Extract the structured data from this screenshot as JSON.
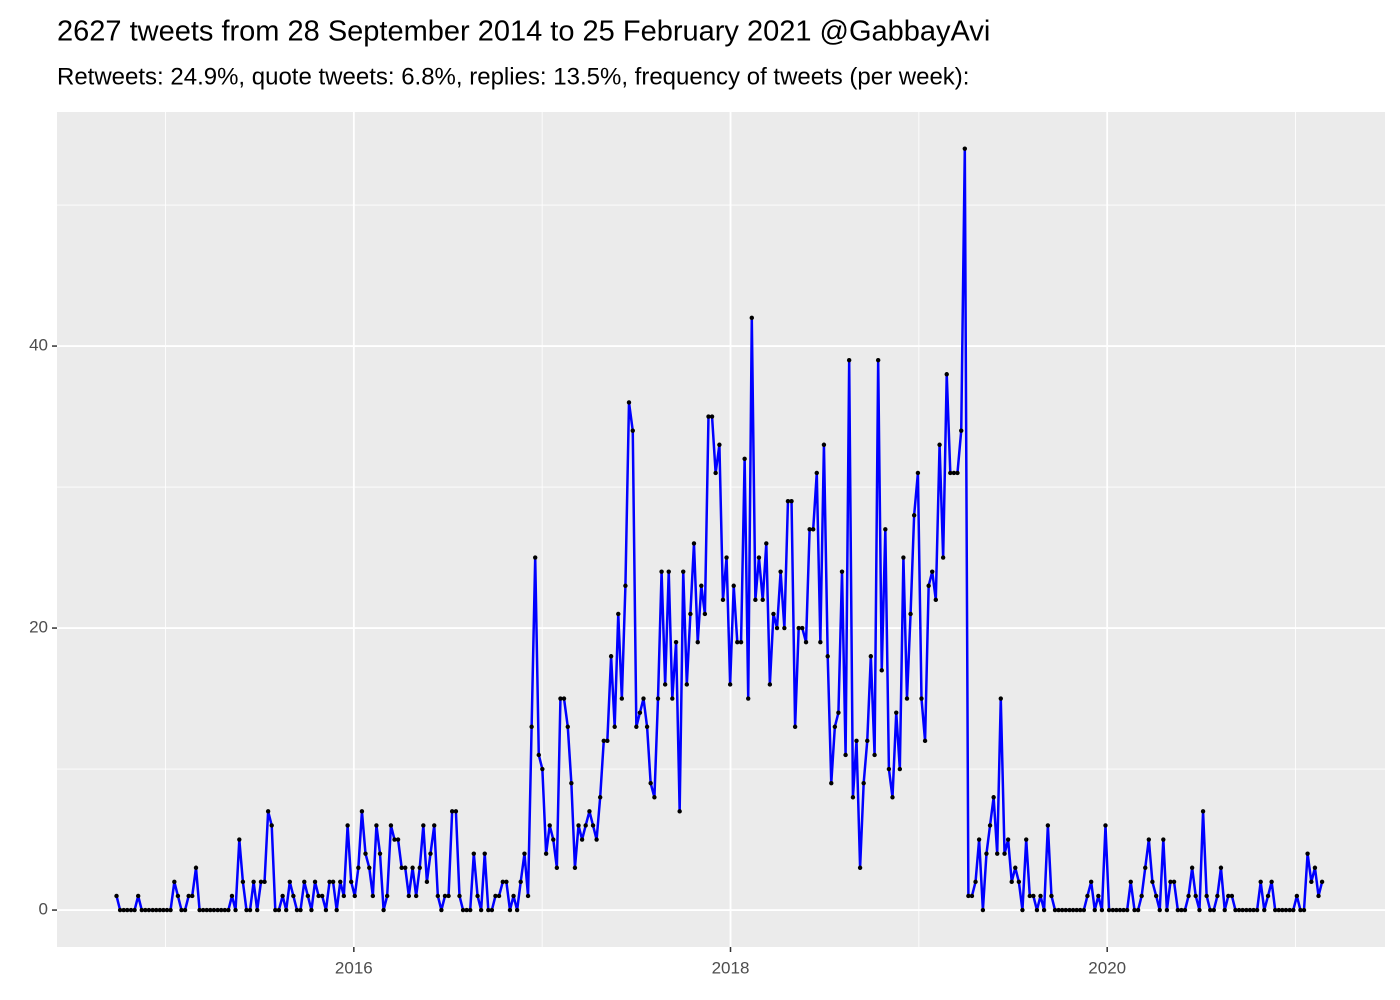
{
  "chart_data": {
    "type": "line",
    "title": "2627 tweets from 28 September 2014 to 25 February 2021 @GabbayAvi",
    "subtitle": "Retweets: 24.9%, quote tweets: 6.8%, replies: 13.5%, frequency of tweets (per week):",
    "color": "#0000ff",
    "point_color": "#000000",
    "grid": true,
    "xlim": [
      2014.424,
      2021.475
    ],
    "xticks": [
      2016,
      2018,
      2020
    ],
    "ylim": [
      -2.62,
      56.6
    ],
    "yticks": [
      0,
      20,
      40
    ],
    "x": [
      2014.74,
      2014.759,
      2014.778,
      2014.797,
      2014.817,
      2014.836,
      2014.855,
      2014.874,
      2014.893,
      2014.912,
      2014.932,
      2014.951,
      2014.97,
      2014.989,
      2015.008,
      2015.027,
      2015.047,
      2015.066,
      2015.085,
      2015.104,
      2015.123,
      2015.142,
      2015.162,
      2015.181,
      2015.2,
      2015.219,
      2015.238,
      2015.257,
      2015.277,
      2015.296,
      2015.315,
      2015.334,
      2015.353,
      2015.372,
      2015.392,
      2015.411,
      2015.43,
      2015.449,
      2015.468,
      2015.487,
      2015.507,
      2015.526,
      2015.545,
      2015.564,
      2015.583,
      2015.602,
      2015.622,
      2015.641,
      2015.66,
      2015.679,
      2015.698,
      2015.717,
      2015.737,
      2015.756,
      2015.775,
      2015.794,
      2015.813,
      2015.832,
      2015.852,
      2015.871,
      2015.89,
      2015.909,
      2015.928,
      2015.947,
      2015.967,
      2015.986,
      2016.005,
      2016.024,
      2016.043,
      2016.062,
      2016.082,
      2016.101,
      2016.12,
      2016.139,
      2016.158,
      2016.177,
      2016.197,
      2016.216,
      2016.235,
      2016.254,
      2016.273,
      2016.292,
      2016.312,
      2016.331,
      2016.35,
      2016.369,
      2016.388,
      2016.407,
      2016.427,
      2016.446,
      2016.465,
      2016.484,
      2016.503,
      2016.522,
      2016.542,
      2016.561,
      2016.58,
      2016.599,
      2016.618,
      2016.637,
      2016.657,
      2016.676,
      2016.695,
      2016.714,
      2016.733,
      2016.752,
      2016.771,
      2016.791,
      2016.81,
      2016.829,
      2016.848,
      2016.867,
      2016.886,
      2016.906,
      2016.925,
      2016.944,
      2016.963,
      2016.982,
      2017.001,
      2017.021,
      2017.04,
      2017.059,
      2017.078,
      2017.097,
      2017.116,
      2017.136,
      2017.155,
      2017.174,
      2017.193,
      2017.212,
      2017.231,
      2017.251,
      2017.27,
      2017.289,
      2017.308,
      2017.327,
      2017.346,
      2017.366,
      2017.385,
      2017.404,
      2017.423,
      2017.442,
      2017.461,
      2017.481,
      2017.5,
      2017.519,
      2017.538,
      2017.557,
      2017.576,
      2017.596,
      2017.615,
      2017.634,
      2017.653,
      2017.672,
      2017.691,
      2017.711,
      2017.73,
      2017.749,
      2017.768,
      2017.787,
      2017.806,
      2017.826,
      2017.845,
      2017.864,
      2017.883,
      2017.902,
      2017.921,
      2017.941,
      2017.96,
      2017.979,
      2017.998,
      2018.017,
      2018.036,
      2018.056,
      2018.075,
      2018.094,
      2018.113,
      2018.132,
      2018.151,
      2018.171,
      2018.19,
      2018.209,
      2018.228,
      2018.247,
      2018.266,
      2018.286,
      2018.305,
      2018.324,
      2018.343,
      2018.362,
      2018.381,
      2018.401,
      2018.42,
      2018.439,
      2018.458,
      2018.477,
      2018.496,
      2018.516,
      2018.535,
      2018.554,
      2018.573,
      2018.592,
      2018.611,
      2018.63,
      2018.65,
      2018.669,
      2018.688,
      2018.707,
      2018.726,
      2018.745,
      2018.765,
      2018.784,
      2018.803,
      2018.822,
      2018.841,
      2018.86,
      2018.88,
      2018.899,
      2018.918,
      2018.937,
      2018.956,
      2018.975,
      2018.995,
      2019.014,
      2019.033,
      2019.052,
      2019.071,
      2019.09,
      2019.11,
      2019.129,
      2019.148,
      2019.167,
      2019.186,
      2019.205,
      2019.225,
      2019.244,
      2019.263,
      2019.282,
      2019.301,
      2019.32,
      2019.34,
      2019.359,
      2019.378,
      2019.397,
      2019.416,
      2019.435,
      2019.455,
      2019.474,
      2019.493,
      2019.512,
      2019.531,
      2019.55,
      2019.57,
      2019.589,
      2019.608,
      2019.627,
      2019.646,
      2019.665,
      2019.685,
      2019.704,
      2019.723,
      2019.742,
      2019.761,
      2019.78,
      2019.8,
      2019.819,
      2019.838,
      2019.857,
      2019.876,
      2019.895,
      2019.915,
      2019.934,
      2019.953,
      2019.972,
      2019.991,
      2020.01,
      2020.03,
      2020.049,
      2020.068,
      2020.087,
      2020.106,
      2020.125,
      2020.145,
      2020.164,
      2020.183,
      2020.202,
      2020.221,
      2020.24,
      2020.26,
      2020.279,
      2020.298,
      2020.317,
      2020.336,
      2020.355,
      2020.375,
      2020.394,
      2020.413,
      2020.432,
      2020.451,
      2020.47,
      2020.49,
      2020.509,
      2020.528,
      2020.547,
      2020.566,
      2020.585,
      2020.604,
      2020.624,
      2020.643,
      2020.662,
      2020.681,
      2020.7,
      2020.719,
      2020.739,
      2020.758,
      2020.777,
      2020.796,
      2020.815,
      2020.834,
      2020.854,
      2020.873,
      2020.892,
      2020.911,
      2020.93,
      2020.949,
      2020.969,
      2020.988,
      2021.007,
      2021.026,
      2021.045,
      2021.064,
      2021.084,
      2021.103,
      2021.122,
      2021.141
    ],
    "values": [
      1,
      0,
      0,
      0,
      0,
      0,
      1,
      0,
      0,
      0,
      0,
      0,
      0,
      0,
      0,
      0,
      2,
      1,
      0,
      0,
      1,
      1,
      3,
      0,
      0,
      0,
      0,
      0,
      0,
      0,
      0,
      0,
      1,
      0,
      5,
      2,
      0,
      0,
      2,
      0,
      2,
      2,
      7,
      6,
      0,
      0,
      1,
      0,
      2,
      1,
      0,
      0,
      2,
      1,
      0,
      2,
      1,
      1,
      0,
      2,
      2,
      0,
      2,
      1,
      6,
      2,
      1,
      3,
      7,
      4,
      3,
      1,
      6,
      4,
      0,
      1,
      6,
      5,
      5,
      3,
      3,
      1,
      3,
      1,
      3,
      6,
      2,
      4,
      6,
      1,
      0,
      1,
      1,
      7,
      7,
      1,
      0,
      0,
      0,
      4,
      1,
      0,
      4,
      0,
      0,
      1,
      1,
      2,
      2,
      0,
      1,
      0,
      2,
      4,
      1,
      13,
      25,
      11,
      10,
      4,
      6,
      5,
      3,
      15,
      15,
      13,
      9,
      3,
      6,
      5,
      6,
      7,
      6,
      5,
      8,
      12,
      12,
      18,
      13,
      21,
      15,
      23,
      36,
      34,
      13,
      14,
      15,
      13,
      9,
      8,
      15,
      24,
      16,
      24,
      15,
      19,
      7,
      24,
      16,
      21,
      26,
      19,
      23,
      21,
      35,
      35,
      31,
      33,
      22,
      25,
      16,
      23,
      19,
      19,
      32,
      15,
      42,
      22,
      25,
      22,
      26,
      16,
      21,
      20,
      24,
      20,
      29,
      29,
      13,
      20,
      20,
      19,
      27,
      27,
      31,
      19,
      33,
      18,
      9,
      13,
      14,
      24,
      11,
      39,
      8,
      12,
      3,
      9,
      12,
      18,
      11,
      39,
      17,
      27,
      10,
      8,
      14,
      10,
      25,
      15,
      21,
      28,
      31,
      15,
      12,
      23,
      24,
      22,
      33,
      25,
      38,
      31,
      31,
      31,
      34,
      54,
      1,
      1,
      2,
      5,
      0,
      4,
      6,
      8,
      4,
      15,
      4,
      5,
      2,
      3,
      2,
      0,
      5,
      1,
      1,
      0,
      1,
      0,
      6,
      1,
      0,
      0,
      0,
      0,
      0,
      0,
      0,
      0,
      0,
      1,
      2,
      0,
      1,
      0,
      6,
      0,
      0,
      0,
      0,
      0,
      0,
      2,
      0,
      0,
      1,
      3,
      5,
      2,
      1,
      0,
      5,
      0,
      2,
      2,
      0,
      0,
      0,
      1,
      3,
      1,
      0,
      7,
      1,
      0,
      0,
      1,
      3,
      0,
      1,
      1,
      0,
      0,
      0,
      0,
      0,
      0,
      0,
      2,
      0,
      1,
      2,
      0,
      0,
      0,
      0,
      0,
      0,
      1,
      0,
      0,
      4,
      2,
      3,
      1,
      2
    ]
  }
}
